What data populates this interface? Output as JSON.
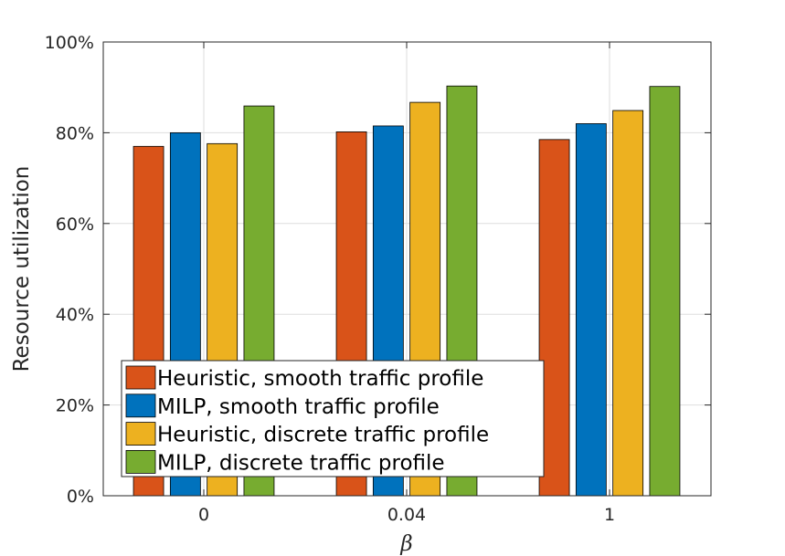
{
  "chart_data": {
    "type": "bar",
    "categories": [
      "0",
      "0.04",
      "1"
    ],
    "series": [
      {
        "name": "Heuristic, smooth traffic profile",
        "values": [
          77,
          80.2,
          78.5
        ],
        "color": "#D95319"
      },
      {
        "name": "MILP, smooth traffic profile",
        "values": [
          80,
          81.5,
          82
        ],
        "color": "#0072BD"
      },
      {
        "name": "Heuristic, discrete traffic profile",
        "values": [
          77.6,
          86.7,
          84.9
        ],
        "color": "#EDB120"
      },
      {
        "name": "MILP, discrete traffic profile",
        "values": [
          85.9,
          90.3,
          90.2
        ],
        "color": "#77AC30"
      }
    ],
    "xlabel": "β",
    "ylabel": "Resource utilization",
    "ylim": [
      0,
      100
    ],
    "yticks": [
      0,
      20,
      40,
      60,
      80,
      100
    ],
    "ytick_labels": [
      "0%",
      "20%",
      "40%",
      "60%",
      "80%",
      "100%"
    ],
    "grid": true,
    "legend_position": "bottom-left"
  }
}
